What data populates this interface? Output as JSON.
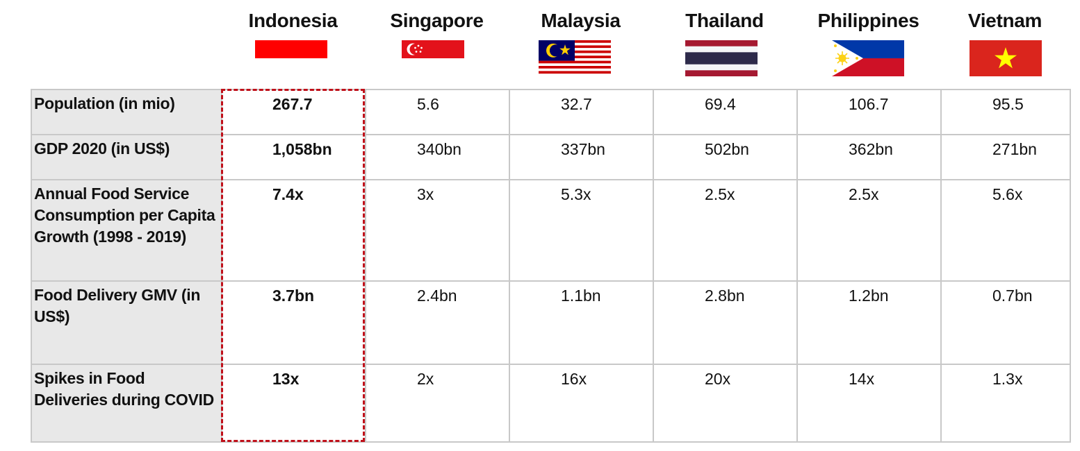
{
  "countries": [
    {
      "name": "Indonesia",
      "flag": "indonesia-flag"
    },
    {
      "name": "Singapore",
      "flag": "singapore-flag"
    },
    {
      "name": "Malaysia",
      "flag": "malaysia-flag"
    },
    {
      "name": "Thailand",
      "flag": "thailand-flag"
    },
    {
      "name": "Philippines",
      "flag": "philippines-flag"
    },
    {
      "name": "Vietnam",
      "flag": "vietnam-flag"
    }
  ],
  "highlight_color": "#c0101a",
  "chart_data": {
    "type": "table",
    "columns": [
      "Indonesia",
      "Singapore",
      "Malaysia",
      "Thailand",
      "Philippines",
      "Vietnam"
    ],
    "rows": [
      {
        "label": "Population (in mio)",
        "values": [
          "267.7",
          "5.6",
          "32.7",
          "69.4",
          "106.7",
          "95.5"
        ]
      },
      {
        "label": "GDP 2020 (in US$)",
        "values": [
          "1,058bn",
          "340bn",
          "337bn",
          "502bn",
          "362bn",
          "271bn"
        ]
      },
      {
        "label": "Annual Food Service Consumption per Capita Growth (1998 - 2019)",
        "values": [
          "7.4x",
          "3x",
          "5.3x",
          "2.5x",
          "2.5x",
          "5.6x"
        ]
      },
      {
        "label": "Food Delivery GMV (in US$)",
        "values": [
          "3.7bn",
          "2.4bn",
          "1.1bn",
          "2.8bn",
          "1.2bn",
          "0.7bn"
        ]
      },
      {
        "label": "Spikes in Food Deliveries during COVID",
        "values": [
          "13x",
          "2x",
          "16x",
          "20x",
          "14x",
          "1.3x"
        ]
      }
    ],
    "highlighted_column": "Indonesia"
  }
}
